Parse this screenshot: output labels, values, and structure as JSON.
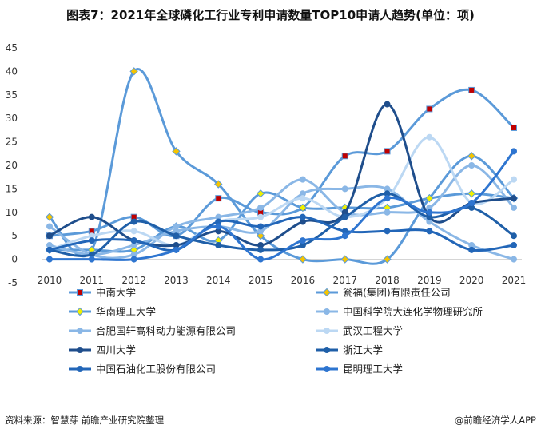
{
  "title": "图表7：2021年全球磷化工行业专利申请数量TOP10申请人趋势(单位：项)",
  "source": "资料来源：智慧芽 前瞻产业研究院整理",
  "brand": "@前瞻经济学人APP",
  "chart_data": {
    "type": "line",
    "x": [
      "2010",
      "2011",
      "2012",
      "2013",
      "2014",
      "2015",
      "2016",
      "2017",
      "2018",
      "2019",
      "2020",
      "2021"
    ],
    "ylim": [
      -5,
      45
    ],
    "yticks": [
      -5,
      0,
      5,
      10,
      15,
      20,
      25,
      30,
      35,
      40,
      45
    ],
    "grid": false,
    "legend_position": "bottom",
    "series": [
      {
        "name": "中南大学",
        "values": [
          5,
          6,
          9,
          5,
          13,
          10,
          11,
          22,
          23,
          32,
          36,
          28
        ],
        "color": "#5b9ad9",
        "marker": "square",
        "marker_color": "#c00000"
      },
      {
        "name": "瓮福(集团)有限责任公司",
        "values": [
          9,
          2,
          40,
          23,
          16,
          5,
          0,
          0,
          0,
          13,
          22,
          13
        ],
        "color": "#5b9ad9",
        "marker": "diamond",
        "marker_color": "#f5c400"
      },
      {
        "name": "华南理工大学",
        "values": [
          2,
          2,
          2,
          7,
          4,
          14,
          11,
          11,
          11,
          13,
          14,
          13
        ],
        "color": "#5b9ad9",
        "marker": "diamond",
        "marker_color": "#f0f000"
      },
      {
        "name": "中国科学院大连化学物理研究所",
        "values": [
          7,
          1,
          1,
          7,
          9,
          11,
          17,
          10,
          10,
          11,
          20,
          11
        ],
        "color": "#8ab7e6",
        "marker": "circle",
        "marker_color": "#8ab7e6"
      },
      {
        "name": "合肥国轩高科动力能源有限公司",
        "values": [
          3,
          1,
          3,
          6,
          7,
          6,
          14,
          15,
          15,
          8,
          3,
          0
        ],
        "color": "#8ab7e6",
        "marker": "circle",
        "marker_color": "#8ab7e6"
      },
      {
        "name": "武汉工程大学",
        "values": [
          2,
          5,
          6,
          3,
          8,
          9,
          13,
          9,
          13,
          26,
          12,
          17
        ],
        "color": "#bcd8f3",
        "marker": "circle",
        "marker_color": "#bcd8f3"
      },
      {
        "name": "四川大学",
        "values": [
          5,
          9,
          4,
          3,
          6,
          3,
          8,
          10,
          33,
          9,
          12,
          13
        ],
        "color": "#1f4e8c",
        "marker": "circle",
        "marker_color": "#1f4e8c"
      },
      {
        "name": "浙江大学",
        "values": [
          2,
          1,
          8,
          5,
          3,
          2,
          3,
          9,
          14,
          9,
          11,
          5
        ],
        "color": "#1f5fa8",
        "marker": "circle",
        "marker_color": "#1f5fa8"
      },
      {
        "name": "中国石油化工股份有限公司",
        "values": [
          2,
          4,
          4,
          2,
          8,
          7,
          9,
          6,
          6,
          6,
          2,
          3
        ],
        "color": "#2266b8",
        "marker": "circle",
        "marker_color": "#2266b8"
      },
      {
        "name": "昆明理工大学",
        "values": [
          0,
          0,
          0,
          2,
          7,
          0,
          4,
          5,
          13,
          10,
          12,
          23
        ],
        "color": "#2e75d0",
        "marker": "circle",
        "marker_color": "#2e75d0"
      }
    ]
  }
}
